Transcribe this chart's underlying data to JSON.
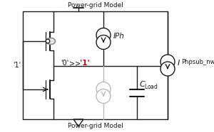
{
  "bg_color": "#ffffff",
  "line_color": "#1a1a1a",
  "gray_color": "#bbbbbb",
  "red_color": "#cc0000",
  "title_top": "Power-grid Model",
  "title_bot": "Power-grid Model",
  "label_1_left": "'1'",
  "label_0": "'0'",
  "label_1_red": "'1'",
  "label_iph": "IPh",
  "label_iphpsub": "IPhpsub_nwel",
  "figsize": [
    3.0,
    1.86
  ],
  "dpi": 100
}
